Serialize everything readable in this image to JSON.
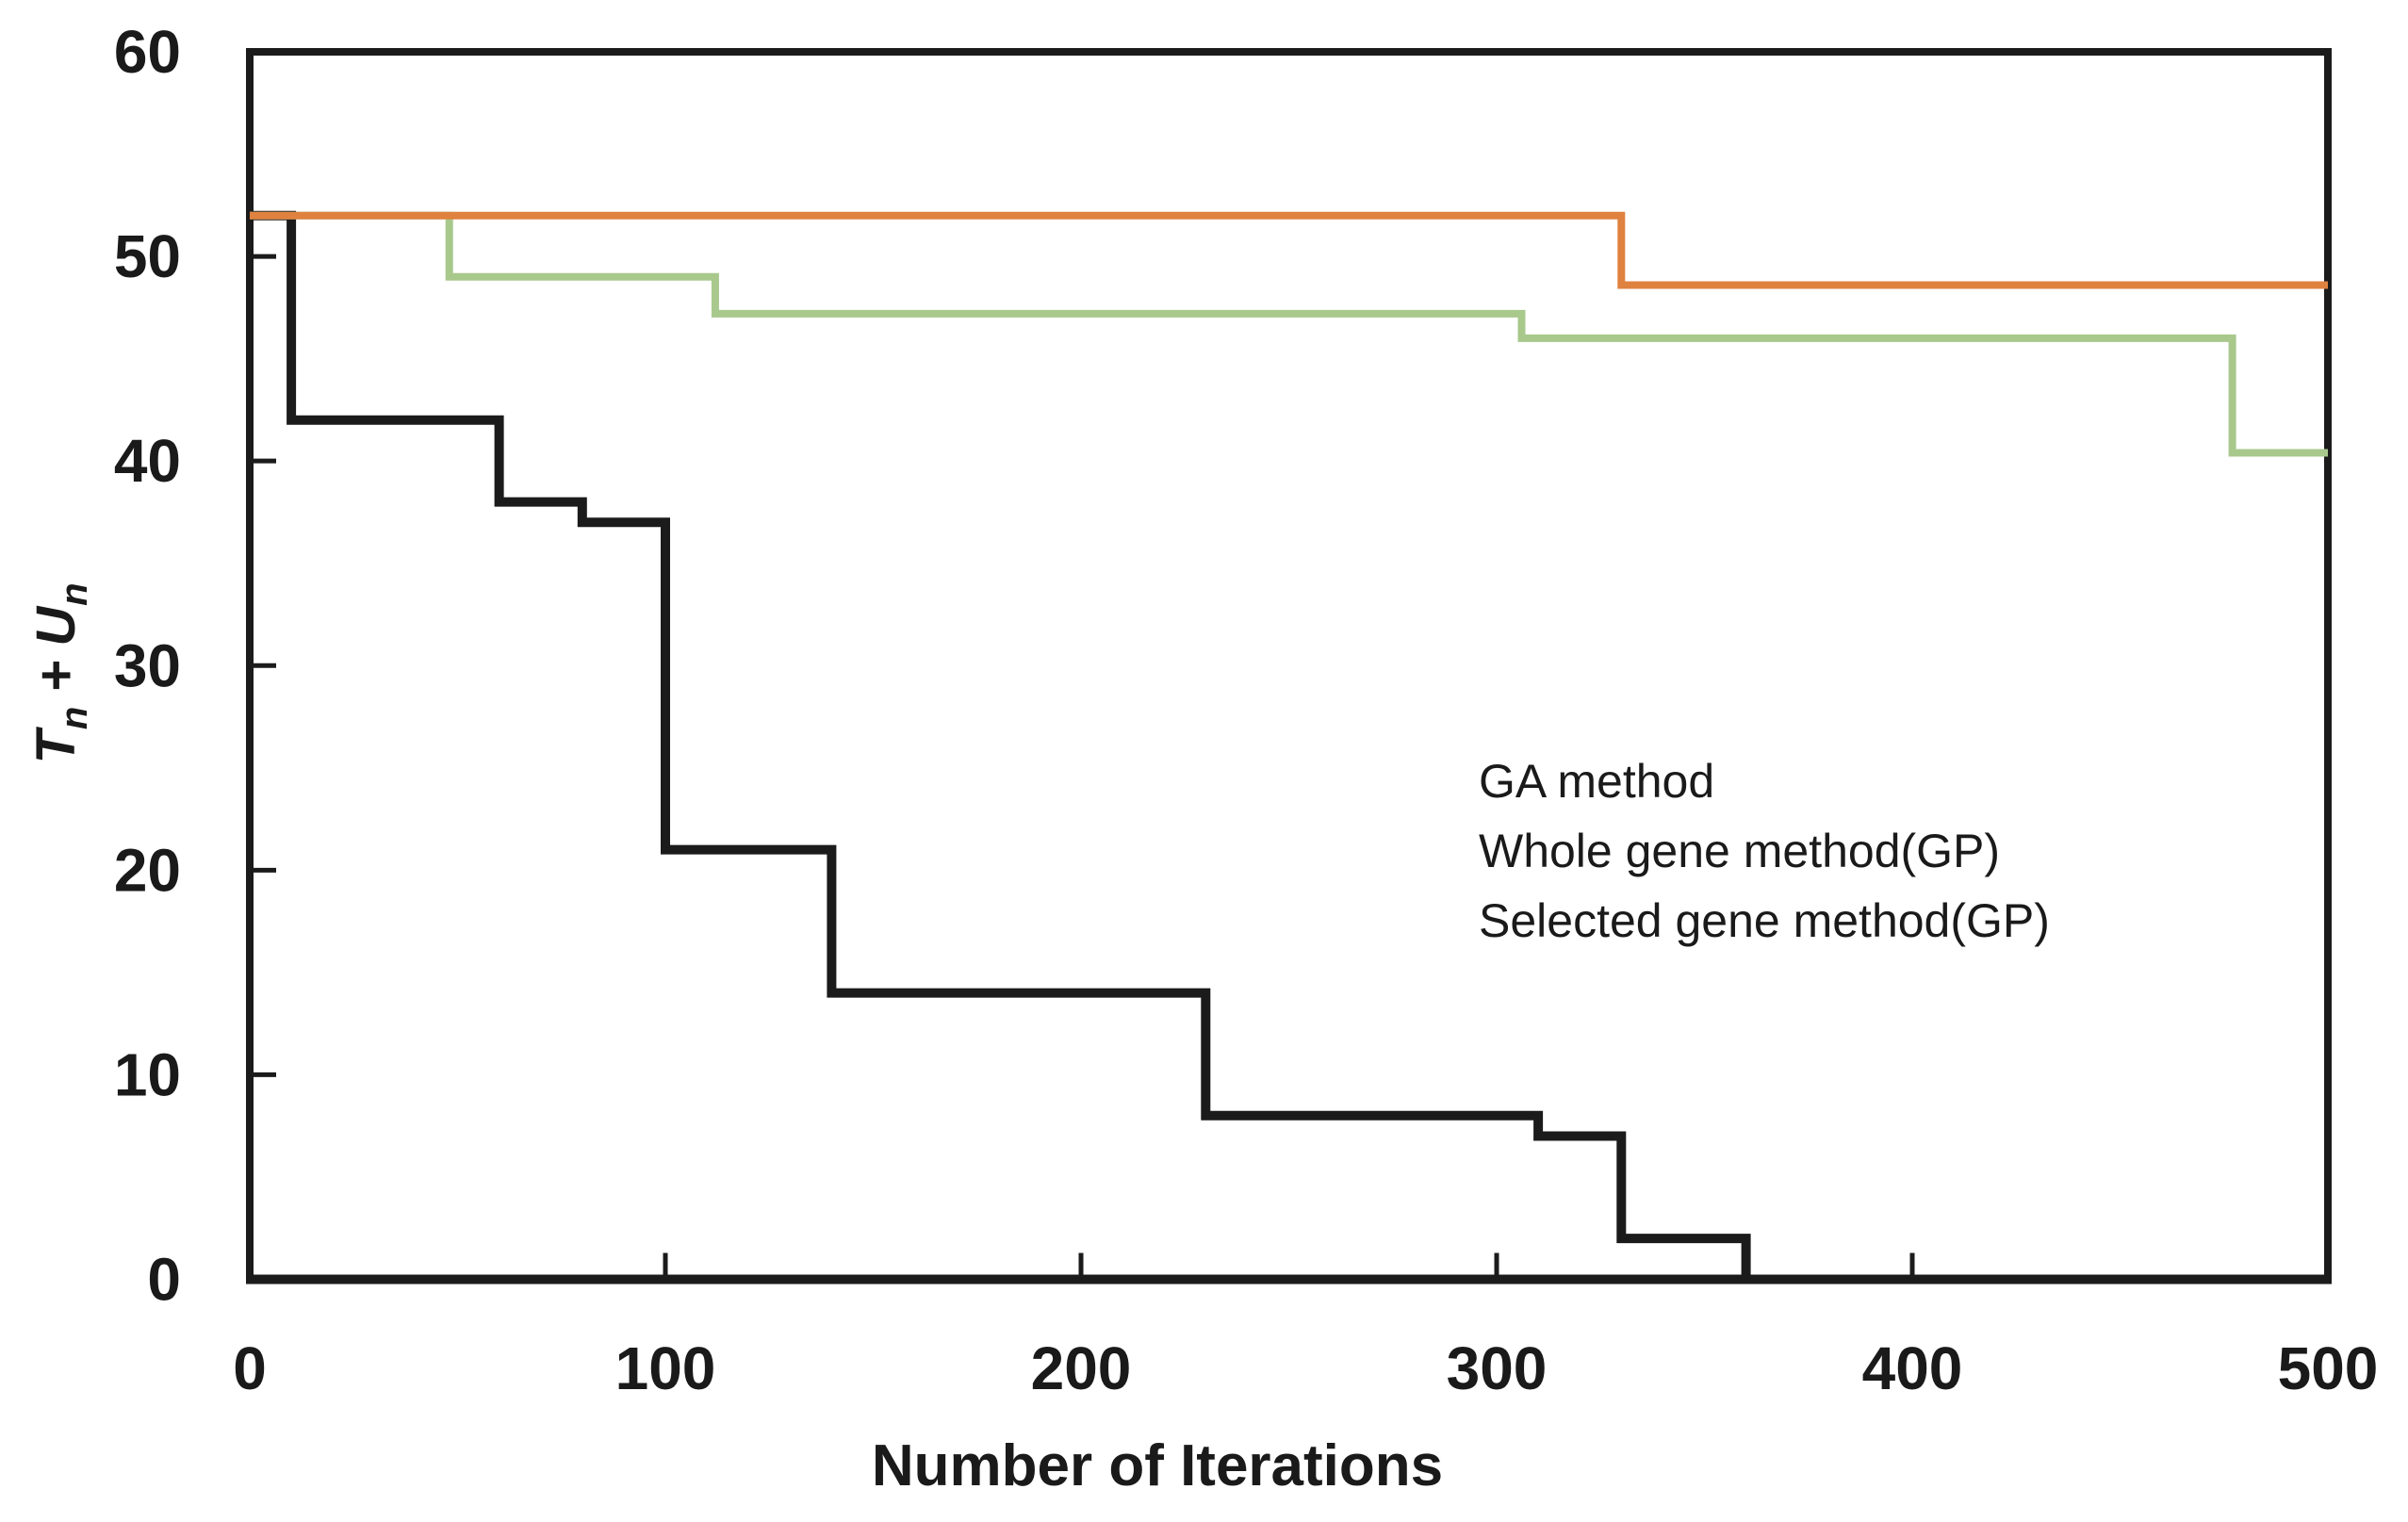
{
  "figure": {
    "background": "#ffffff"
  },
  "chart_data": {
    "type": "line",
    "subtype": "step",
    "title": "",
    "xlabel": "Number of Iterations",
    "ylabel": "Tn + Un",
    "ylabel_rich": {
      "var1": "T",
      "sub1": "n",
      "op": "+",
      "var2": "U",
      "sub2": "n"
    },
    "xlim": [
      0,
      500
    ],
    "ylim": [
      0,
      60
    ],
    "x_ticks": [
      0,
      100,
      200,
      300,
      400,
      500
    ],
    "y_ticks": [
      0,
      10,
      20,
      30,
      40,
      50,
      60
    ],
    "grid": false,
    "legend_position": "inside-center-right",
    "axis_color": "#1b1b1b",
    "text_color": "#1a1a1a",
    "series": [
      {
        "name": "GA method",
        "color": "#DF813F",
        "stroke_width": 8,
        "points": [
          [
            0,
            52
          ],
          [
            330,
            52
          ],
          [
            330,
            48.6
          ],
          [
            500,
            48.6
          ]
        ]
      },
      {
        "name": "Whole gene method(GP)",
        "color": "#A8C88C",
        "stroke_width": 8,
        "points": [
          [
            0,
            52
          ],
          [
            48,
            52
          ],
          [
            48,
            49
          ],
          [
            112,
            49
          ],
          [
            112,
            47.2
          ],
          [
            306,
            47.2
          ],
          [
            306,
            46
          ],
          [
            477,
            46
          ],
          [
            477,
            40.4
          ],
          [
            500,
            40.4
          ]
        ]
      },
      {
        "name": "Selected gene method(GP)",
        "color": "#1b1b1b",
        "stroke_width": 10,
        "points": [
          [
            0,
            52
          ],
          [
            10,
            52
          ],
          [
            10,
            42
          ],
          [
            60,
            42
          ],
          [
            60,
            38
          ],
          [
            80,
            38
          ],
          [
            80,
            37
          ],
          [
            100,
            37
          ],
          [
            100,
            21
          ],
          [
            140,
            21
          ],
          [
            140,
            14
          ],
          [
            230,
            14
          ],
          [
            230,
            8
          ],
          [
            310,
            8
          ],
          [
            310,
            7
          ],
          [
            330,
            7
          ],
          [
            330,
            2
          ],
          [
            360,
            2
          ],
          [
            360,
            0
          ]
        ]
      }
    ]
  }
}
